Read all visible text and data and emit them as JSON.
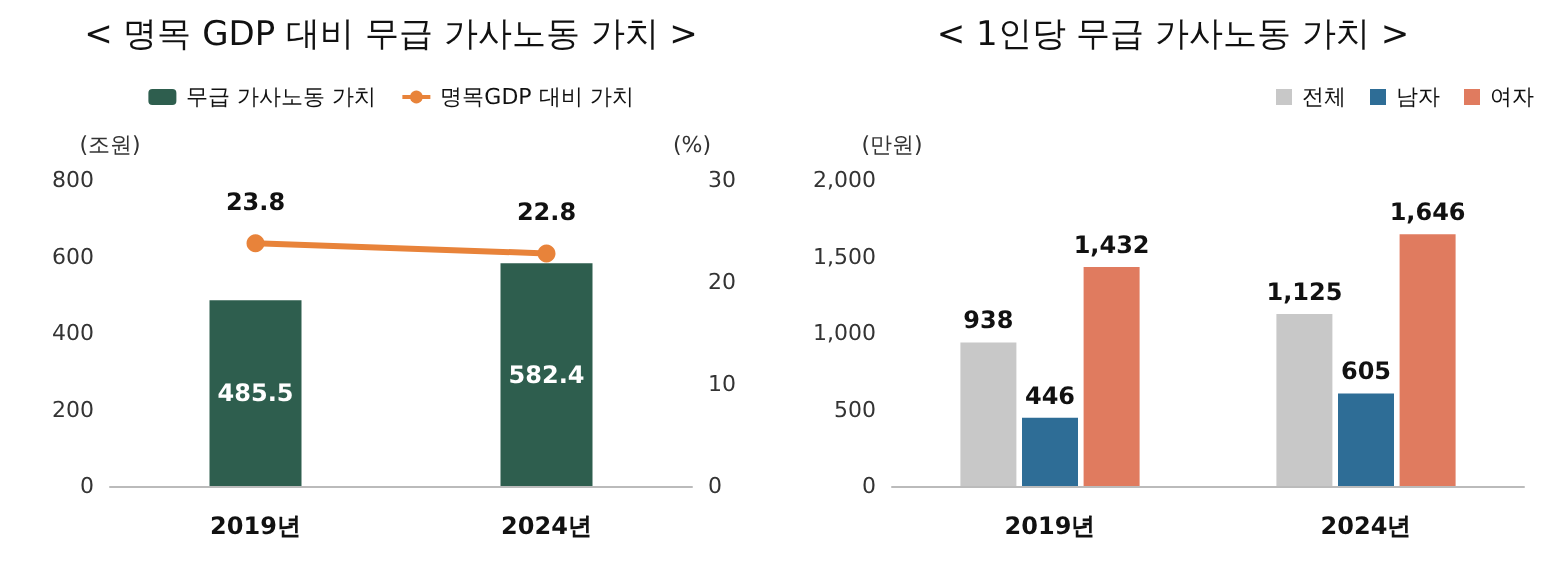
{
  "chart_data": [
    {
      "type": "bar",
      "title": "< 명목 GDP 대비 무급 가사노동 가치 >",
      "ylabel": "(조원)",
      "y2label": "(%)",
      "categories": [
        "2019년",
        "2024년"
      ],
      "series": [
        {
          "name": "무급 가사노동 가치",
          "color": "#2e5e4e",
          "values": [
            485.5,
            582.4
          ]
        },
        {
          "name": "명목GDP 대비 가치",
          "type": "line",
          "axis": "y2",
          "color": "#e8833a",
          "marker": "circle",
          "values": [
            23.8,
            22.8
          ]
        }
      ],
      "ylim": [
        0,
        800
      ],
      "yticks": [
        0,
        200,
        400,
        600,
        800
      ],
      "y2lim": [
        0,
        30
      ],
      "y2ticks": [
        0,
        10,
        20,
        30
      ],
      "data_labels": true,
      "legend": "top",
      "grid": false
    },
    {
      "type": "bar",
      "title": "< 1인당 무급 가사노동 가치 >",
      "ylabel": "(만원)",
      "categories": [
        "2019년",
        "2024년"
      ],
      "series": [
        {
          "name": "전체",
          "color": "#c8c8c8",
          "values": [
            938,
            1125
          ]
        },
        {
          "name": "남자",
          "color": "#2e6d96",
          "values": [
            446,
            605
          ]
        },
        {
          "name": "여자",
          "color": "#e07b5f",
          "values": [
            1432,
            1646
          ]
        }
      ],
      "ylim": [
        0,
        2000
      ],
      "yticks": [
        0,
        500,
        {
          "value": 1000,
          "label": "1,000"
        },
        {
          "value": 1500,
          "label": "1,500"
        },
        {
          "value": 2000,
          "label": "2,000"
        }
      ],
      "value_labels": [
        [
          "938",
          "1,125"
        ],
        [
          "446",
          "605"
        ],
        [
          "1,432",
          "1,646"
        ]
      ],
      "legend": "top right",
      "grid": false
    }
  ]
}
